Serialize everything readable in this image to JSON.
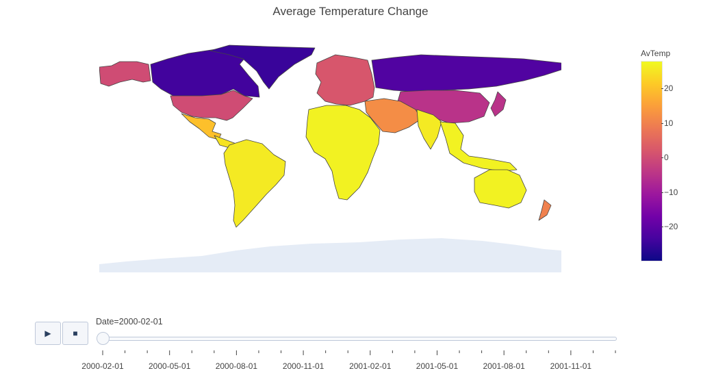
{
  "chart_data": {
    "type": "choropleth",
    "title": "Average Temperature Change",
    "colorbar": {
      "title": "AvTemp",
      "range": [
        -30,
        28
      ],
      "tickvals": [
        20,
        10,
        0,
        -10,
        -20
      ],
      "ticklabels": [
        "20",
        "10",
        "0",
        "−10",
        "−20"
      ],
      "colorscale": [
        "#0d0887",
        "#46039f",
        "#7201a8",
        "#9c179e",
        "#bd3786",
        "#d8576b",
        "#ed7953",
        "#fb9f3a",
        "#fdca26",
        "#f0f921"
      ]
    },
    "land_color_antarctica": "#e5ecf6",
    "regions": [
      {
        "name": "Alaska",
        "value": 0
      },
      {
        "name": "Canada",
        "value": -24
      },
      {
        "name": "Greenland",
        "value": -25
      },
      {
        "name": "United States",
        "value": 0
      },
      {
        "name": "Mexico",
        "value": 20
      },
      {
        "name": "Central America",
        "value": 25
      },
      {
        "name": "South America",
        "value": 26
      },
      {
        "name": "Europe",
        "value": 2
      },
      {
        "name": "Russia",
        "value": -22
      },
      {
        "name": "China",
        "value": -5
      },
      {
        "name": "Middle East",
        "value": 12
      },
      {
        "name": "Africa",
        "value": 27
      },
      {
        "name": "India",
        "value": 26
      },
      {
        "name": "Southeast Asia",
        "value": 27
      },
      {
        "name": "Japan",
        "value": -5
      },
      {
        "name": "Australia",
        "value": 27
      },
      {
        "name": "New Zealand",
        "value": 10
      }
    ],
    "frames": [
      "2000-02-01",
      "2000-05-01",
      "2000-08-01",
      "2000-11-01",
      "2001-02-01",
      "2001-05-01",
      "2001-08-01",
      "2001-11-01"
    ],
    "current_frame": "2000-02-01"
  },
  "controls": {
    "play_icon": "▶",
    "stop_icon": "■",
    "slider_label": "Date=2000-02-01"
  }
}
